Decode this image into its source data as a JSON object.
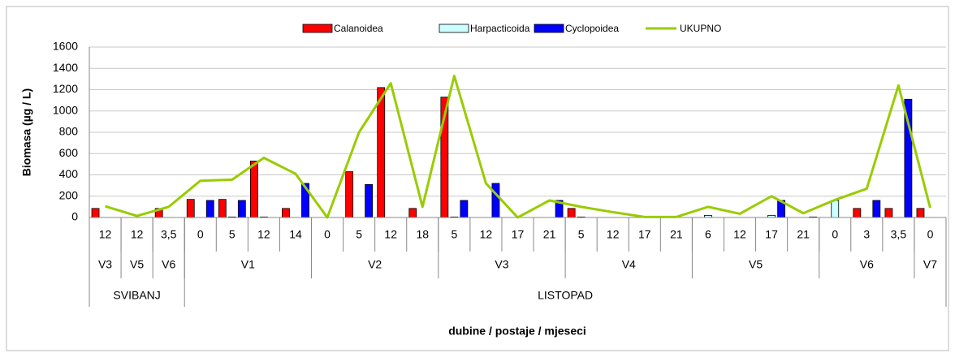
{
  "chart_data": {
    "type": "bar",
    "y_label": "Biomasa (µg / L)",
    "x_label": "dubine / postaje / mjeseci",
    "categories": [
      "12",
      "12",
      "3,5",
      "0",
      "5",
      "12",
      "14",
      "0",
      "5",
      "12",
      "18",
      "5",
      "12",
      "17",
      "21",
      "5",
      "12",
      "17",
      "21",
      "6",
      "12",
      "17",
      "21",
      "0",
      "3",
      "3,5",
      "0"
    ],
    "stations": [
      "V3",
      "V5",
      "V6",
      "V1",
      null,
      null,
      null,
      "V2",
      null,
      null,
      null,
      "V3",
      null,
      null,
      null,
      "V4",
      null,
      null,
      null,
      "V5",
      null,
      null,
      null,
      "V6",
      null,
      null,
      "V7"
    ],
    "months": [
      "SVIBANJ",
      null,
      null,
      "LISTOPAD",
      null,
      null,
      null,
      null,
      null,
      null,
      null,
      null,
      null,
      null,
      null,
      null,
      null,
      null,
      null,
      null,
      null,
      null,
      null,
      null,
      null,
      null,
      null
    ],
    "series": [
      {
        "name": "Calanoidea",
        "color": "#ff0000",
        "values": [
          85,
          0,
          85,
          170,
          170,
          530,
          85,
          0,
          430,
          1220,
          85,
          1130,
          0,
          0,
          0,
          85,
          0,
          0,
          0,
          0,
          0,
          0,
          0,
          0,
          85,
          85,
          85
        ]
      },
      {
        "name": "Harpacticoida",
        "color": "#ccffff",
        "values": [
          0,
          0,
          0,
          0,
          5,
          5,
          0,
          0,
          0,
          0,
          0,
          5,
          0,
          0,
          0,
          5,
          0,
          0,
          0,
          20,
          0,
          20,
          0,
          160,
          0,
          0,
          0
        ]
      },
      {
        "name": "Cyclopoidea",
        "color": "#0000ff",
        "values": [
          0,
          0,
          0,
          160,
          160,
          0,
          320,
          0,
          310,
          0,
          0,
          160,
          320,
          0,
          160,
          0,
          0,
          0,
          0,
          0,
          0,
          160,
          5,
          0,
          160,
          1110,
          0
        ]
      },
      {
        "name": "UKUPNO",
        "color": "#99cc00",
        "type": "line",
        "values": [
          105,
          15,
          100,
          345,
          355,
          560,
          410,
          0,
          800,
          1260,
          100,
          1330,
          320,
          0,
          160,
          100,
          50,
          5,
          5,
          100,
          35,
          200,
          40,
          165,
          270,
          1240,
          90
        ]
      }
    ],
    "ylim": [
      0,
      1600
    ],
    "yticks": [
      0,
      200,
      400,
      600,
      800,
      1000,
      1200,
      1400,
      1600
    ],
    "grid": true,
    "legend": "top"
  }
}
